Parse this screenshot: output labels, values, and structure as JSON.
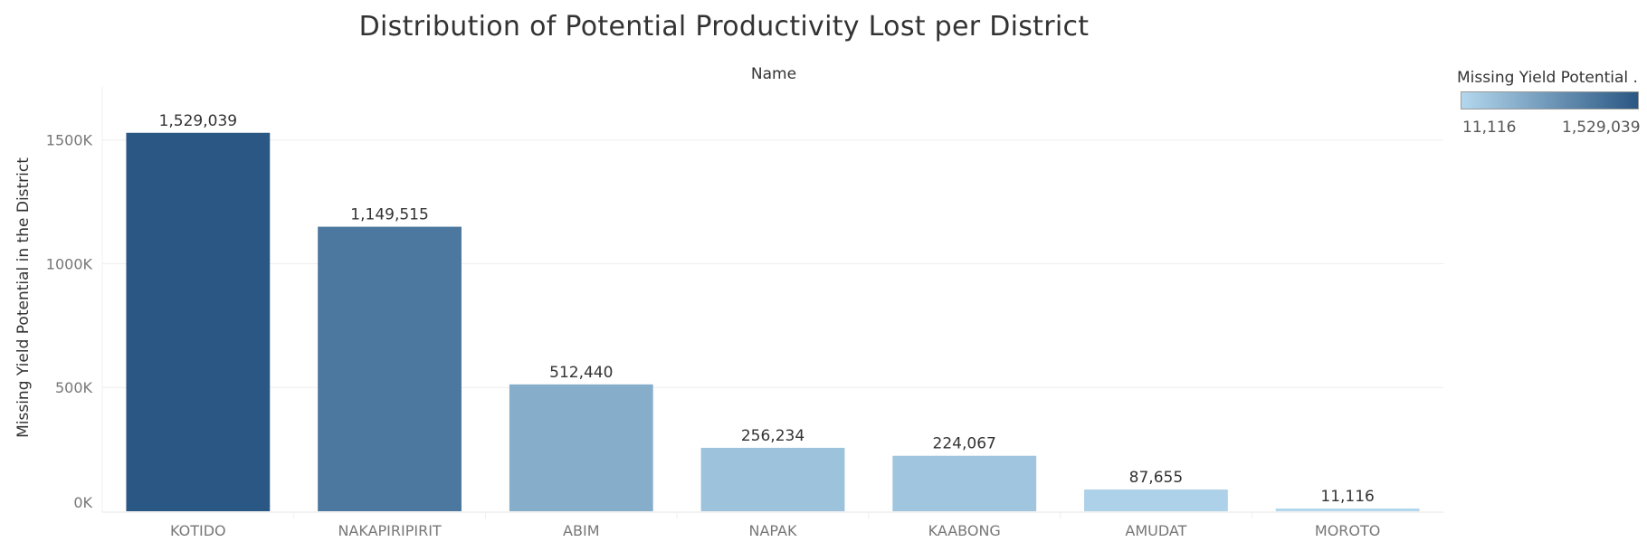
{
  "colors": {
    "scale_low": "#b3d7ed",
    "scale_high": "#2a5783",
    "grid": "#eeeeee",
    "axis_text": "#777777",
    "label_text": "#333333"
  },
  "legend": {
    "title": "Missing Yield Potential ..",
    "min_label": "11,116",
    "max_label": "1,529,039"
  },
  "chart_data": {
    "type": "bar",
    "title": "Distribution of Potential Productivity Lost per District",
    "header": "Name",
    "ylabel": "Missing Yield Potential in the District",
    "xlabel": "",
    "categories": [
      "KOTIDO",
      "NAKAPIRIPIRIT",
      "ABIM",
      "NAPAK",
      "KAABONG",
      "AMUDAT",
      "MOROTO"
    ],
    "values": [
      1529039,
      1149515,
      512440,
      256234,
      224067,
      87655,
      11116
    ],
    "data_labels": [
      "1,529,039",
      "1,149,515",
      "512,440",
      "256,234",
      "224,067",
      "87,655",
      "11,116"
    ],
    "ylim": [
      0,
      1700000
    ],
    "yticks": [
      0,
      500000,
      1000000,
      1500000
    ],
    "ytick_labels": [
      "0K",
      "500K",
      "1000K",
      "1500K"
    ],
    "grid": true,
    "legend_position": "top-right"
  }
}
